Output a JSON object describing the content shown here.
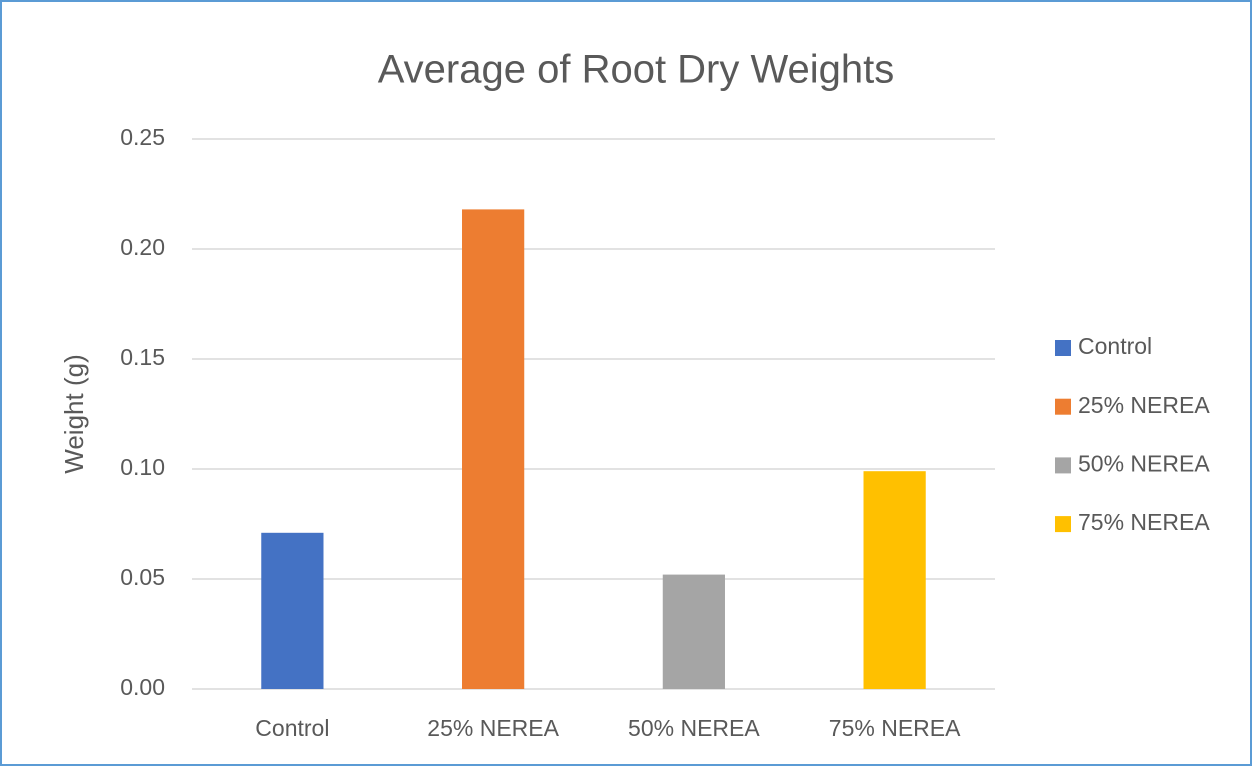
{
  "chart_data": {
    "type": "bar",
    "title": "Average of Root Dry Weights",
    "y_label": "Weight (g)",
    "categories": [
      "Control",
      "25% NEREA",
      "50% NEREA",
      "75% NEREA"
    ],
    "values": [
      0.071,
      0.218,
      0.052,
      0.099
    ],
    "colors": [
      "#4472c4",
      "#ed7d31",
      "#a5a5a5",
      "#ffc000"
    ],
    "ylim": [
      0,
      0.25
    ],
    "yticks": [
      {
        "value": 0,
        "label": "0.00"
      },
      0.05,
      {
        "value": 0.1,
        "label": "0.10"
      },
      0.15,
      {
        "value": 0.2,
        "label": "0.20"
      },
      0.25
    ],
    "grid": true,
    "legend": "right"
  }
}
